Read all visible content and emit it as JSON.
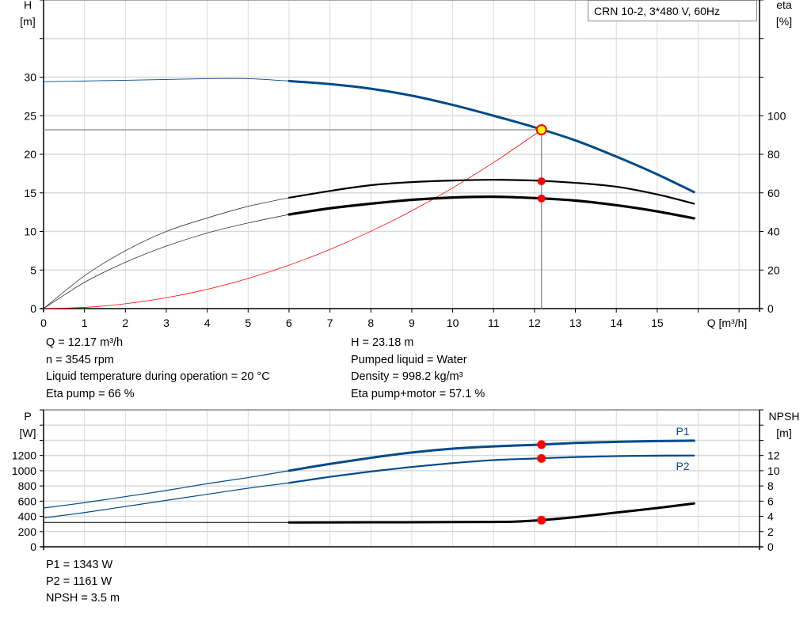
{
  "legend_box": "CRN 10-2, 3*480 V, 60Hz",
  "colors": {
    "head": "#004a8a",
    "system": "#ff0000",
    "efficiency": "#000000",
    "power": "#004a8a",
    "npsh": "#000000",
    "grid": "#d9d9d9",
    "duty_point": "#ff0000",
    "duty_point_head": "#ffff00"
  },
  "info_top": {
    "left": [
      "Q = 12.17 m³/h",
      "n = 3545 rpm",
      "Liquid temperature during operation = 20 °C",
      "Eta pump = 66 %"
    ],
    "right": [
      "H = 23.18 m",
      "Pumped liquid = Water",
      "Density = 998.2 kg/m³",
      "Eta pump+motor = 57.1 %"
    ]
  },
  "info_bottom": [
    "P1 = 1343 W",
    "P2 = 1161 W",
    "NPSH = 3.5 m"
  ],
  "chart_data": [
    {
      "type": "line",
      "title": "",
      "xlabel": "Q [m³/h]",
      "ylabel_left": [
        "H",
        "[m]"
      ],
      "ylabel_right": [
        "eta",
        "[%]"
      ],
      "xlim": [
        0,
        17.5
      ],
      "ylim_left": [
        0,
        40
      ],
      "ylim_right": [
        0,
        160
      ],
      "xticks": [
        0,
        1,
        2,
        3,
        4,
        5,
        6,
        7,
        8,
        9,
        10,
        11,
        12,
        13,
        14,
        15
      ],
      "yticks_left": [
        0,
        5,
        10,
        15,
        20,
        25,
        30
      ],
      "yticks_right": [
        0,
        20,
        40,
        60,
        80,
        100
      ],
      "grid": true,
      "duty_point": {
        "Q": 12.17,
        "H": 23.18,
        "eta_pump": 66,
        "eta_pump_motor": 57.1
      },
      "series": [
        {
          "key": "head",
          "axis": "left",
          "x": [
            0,
            1,
            2,
            3,
            4,
            5,
            6,
            7,
            8,
            9,
            10,
            11,
            12,
            13,
            14,
            15,
            15.9
          ],
          "y": [
            29.4,
            29.5,
            29.6,
            29.7,
            29.8,
            29.8,
            29.5,
            29.1,
            28.5,
            27.6,
            26.4,
            25.0,
            23.5,
            21.8,
            19.7,
            17.4,
            15.1
          ]
        },
        {
          "key": "eta_pump",
          "axis": "right",
          "x": [
            0,
            1,
            2,
            3,
            4,
            5,
            6,
            7,
            8,
            9,
            10,
            11,
            12,
            13,
            14,
            15,
            15.9
          ],
          "y": [
            0,
            17,
            30,
            40,
            47,
            53,
            57.5,
            61,
            64,
            65.6,
            66.4,
            66.8,
            66.4,
            65.2,
            63.2,
            59.2,
            54.4
          ]
        },
        {
          "key": "eta_pump_motor",
          "axis": "right",
          "x": [
            0,
            1,
            2,
            3,
            4,
            5,
            6,
            7,
            8,
            9,
            10,
            11,
            12,
            13,
            14,
            15,
            15.9
          ],
          "y": [
            0,
            13.6,
            24,
            32.4,
            39.2,
            44.4,
            48.8,
            52,
            54.4,
            56.4,
            57.6,
            58,
            57.3,
            56,
            53.6,
            50.4,
            46.8
          ]
        },
        {
          "key": "system",
          "axis": "left",
          "x": [
            0,
            1,
            2,
            3,
            4,
            5,
            6,
            7,
            8,
            9,
            10,
            11,
            12,
            12.17
          ],
          "y": [
            0,
            0.16,
            0.63,
            1.41,
            2.5,
            3.91,
            5.63,
            7.67,
            10.02,
            12.68,
            15.65,
            18.94,
            22.54,
            23.18
          ]
        }
      ]
    },
    {
      "type": "line",
      "title": "",
      "ylabel_left": [
        "P",
        "[W]"
      ],
      "ylabel_right": [
        "NPSH",
        "[m]"
      ],
      "xlim": [
        0,
        17.5
      ],
      "ylim_left": [
        0,
        1800
      ],
      "ylim_right": [
        0,
        18
      ],
      "yticks_left": [
        0,
        200,
        400,
        600,
        800,
        1000,
        1200
      ],
      "yticks_right": [
        0,
        2,
        4,
        6,
        8,
        10,
        12
      ],
      "grid": true,
      "duty_point": {
        "Q": 12.17,
        "P1": 1343,
        "P2": 1161,
        "NPSH": 3.5
      },
      "series": [
        {
          "key": "P1",
          "name": "P1",
          "axis": "left",
          "x": [
            0,
            1,
            2,
            3,
            4,
            5,
            6,
            7,
            8,
            9,
            10,
            11,
            12,
            13,
            14,
            15,
            15.9
          ],
          "y": [
            510,
            580,
            660,
            740,
            830,
            910,
            1000,
            1090,
            1170,
            1240,
            1290,
            1320,
            1340,
            1365,
            1380,
            1390,
            1395
          ]
        },
        {
          "key": "P2",
          "name": "P2",
          "axis": "left",
          "x": [
            0,
            1,
            2,
            3,
            4,
            5,
            6,
            7,
            8,
            9,
            10,
            11,
            12,
            13,
            14,
            15,
            15.9
          ],
          "y": [
            380,
            450,
            530,
            610,
            690,
            770,
            840,
            920,
            990,
            1050,
            1100,
            1140,
            1160,
            1180,
            1192,
            1198,
            1200
          ]
        },
        {
          "key": "npsh",
          "axis": "right",
          "x": [
            0,
            6,
            8,
            10,
            11,
            11.5,
            12,
            12.17,
            13,
            14,
            15,
            15.9
          ],
          "y": [
            3.2,
            3.2,
            3.22,
            3.25,
            3.27,
            3.3,
            3.45,
            3.5,
            3.9,
            4.5,
            5.1,
            5.7
          ]
        }
      ]
    }
  ]
}
